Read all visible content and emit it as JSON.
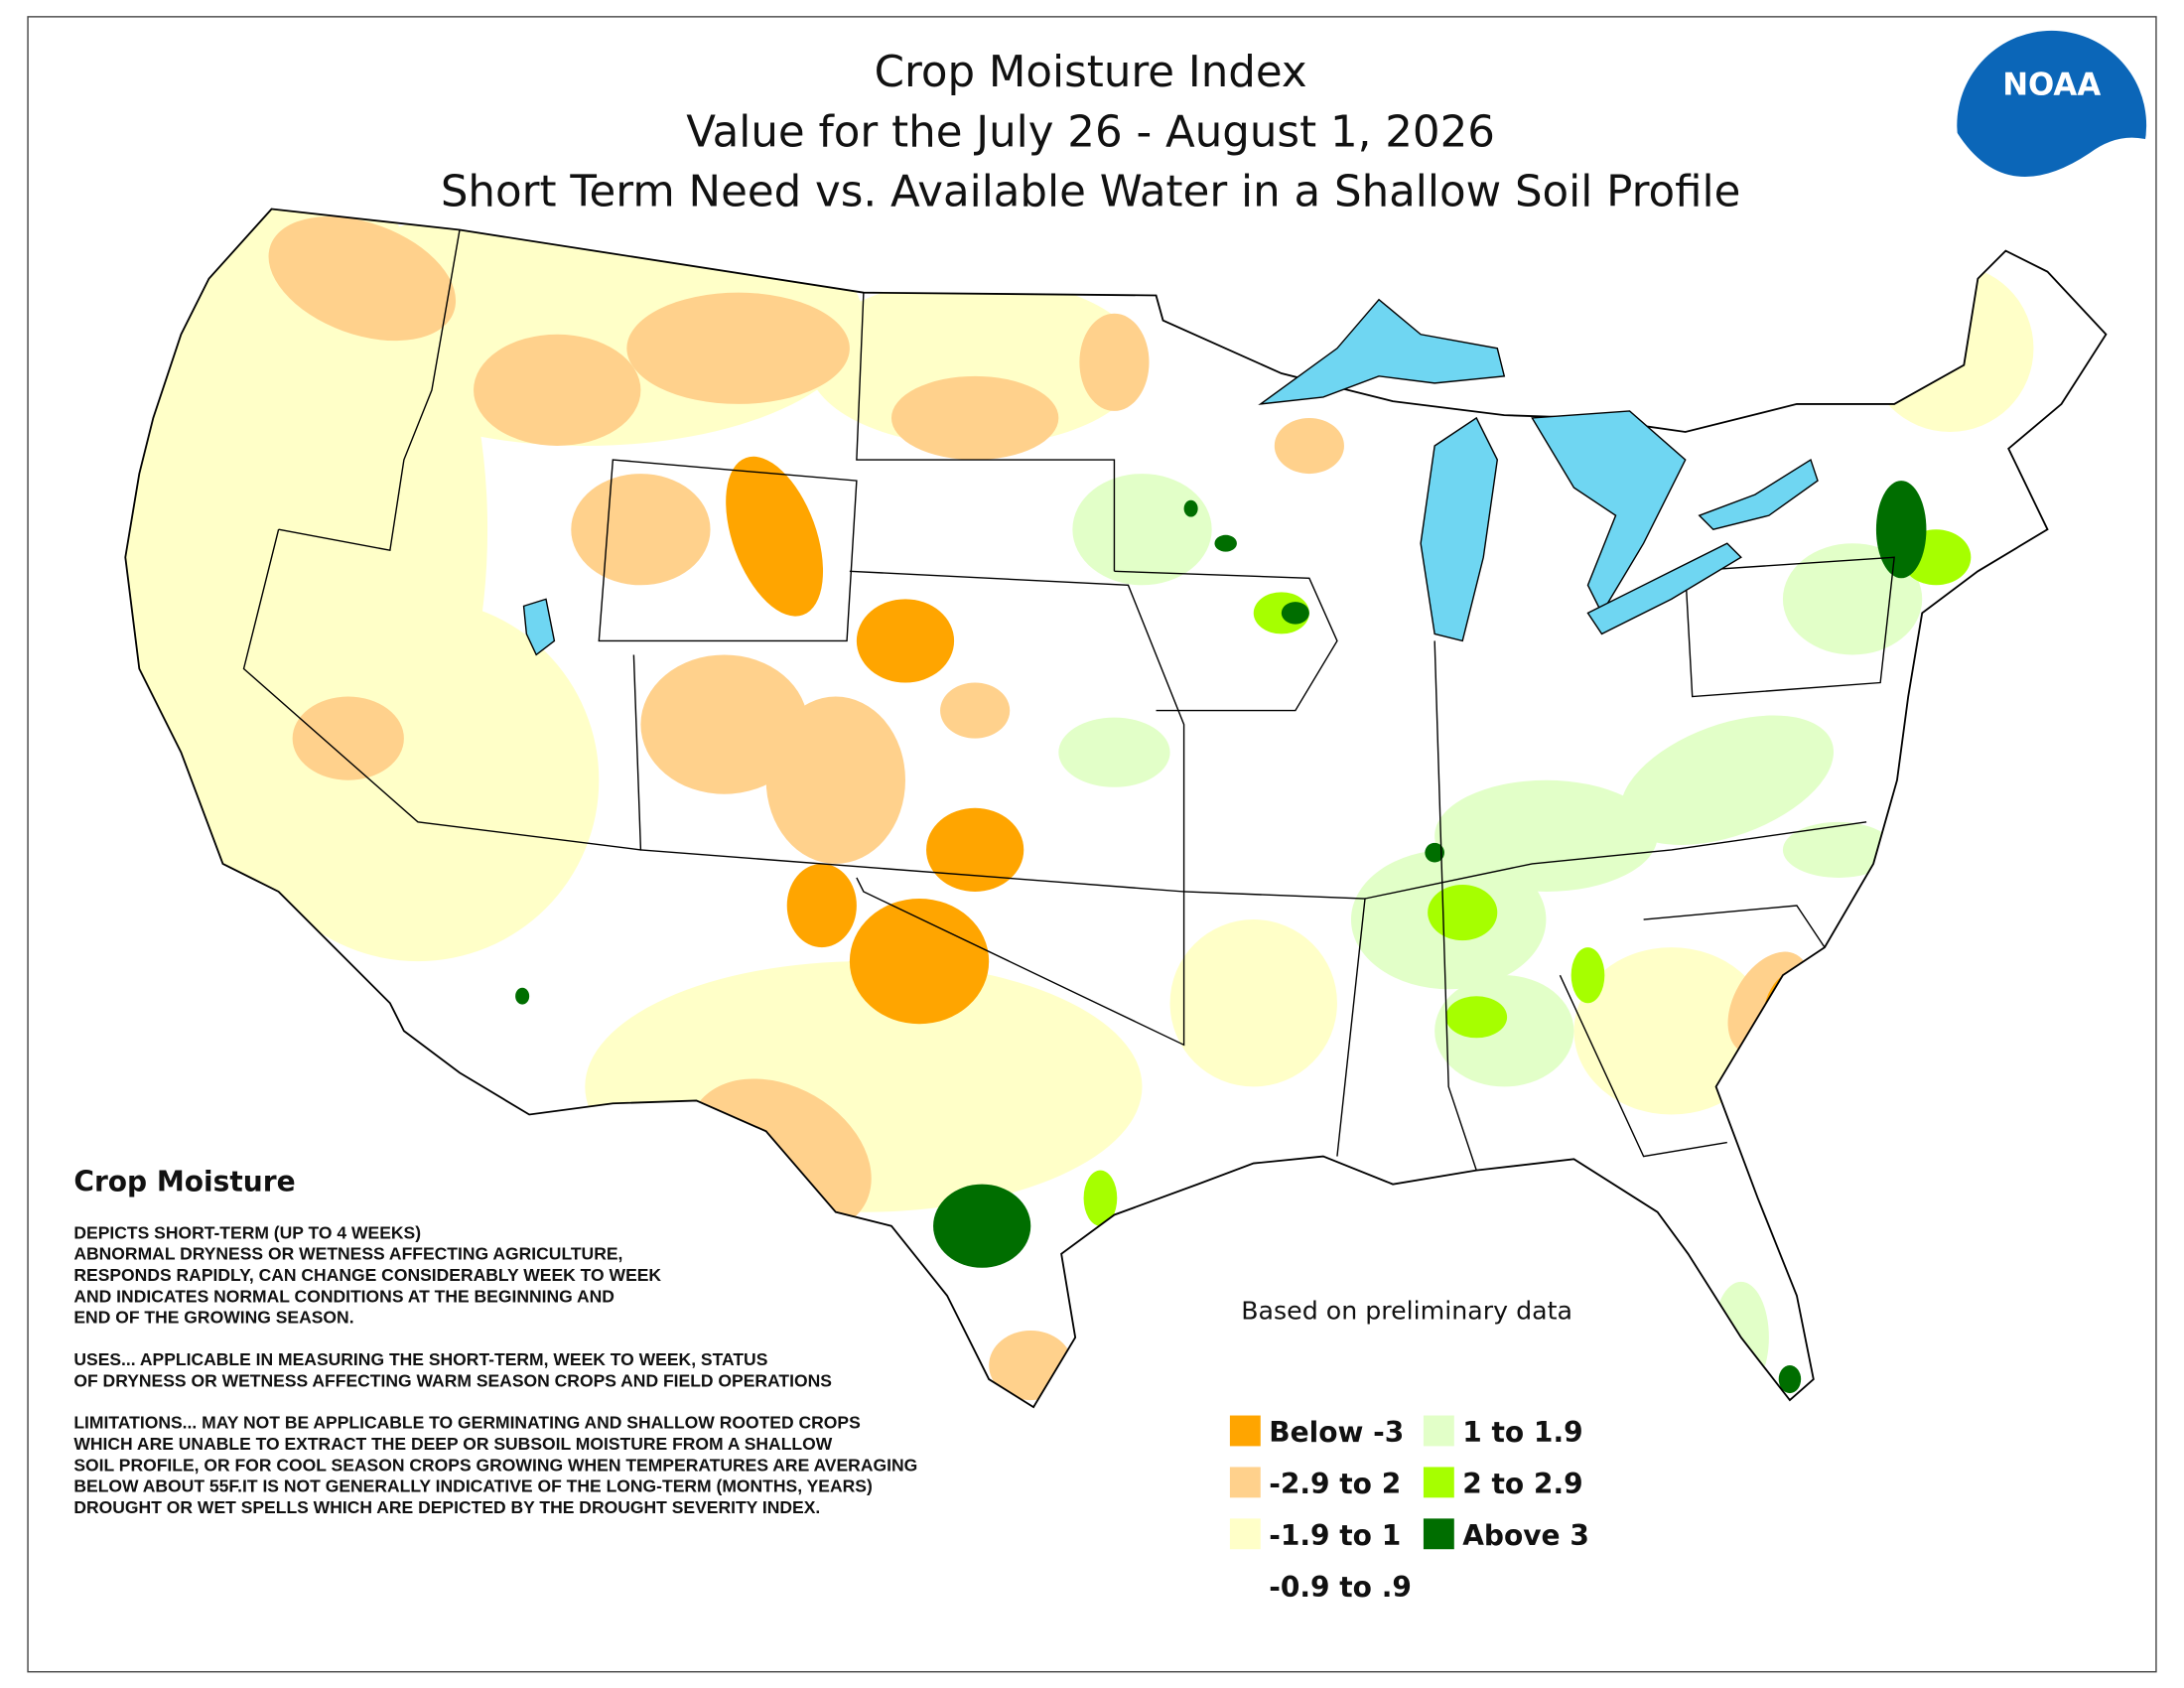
{
  "header": {
    "title_lines": [
      "Crop Moisture Index",
      "Value for the July 26 - August 1, 2026",
      "Short Term Need vs. Available Water in a Shallow Soil Profile"
    ]
  },
  "logo": {
    "text": "NOAA"
  },
  "notes": {
    "heading": "Crop Moisture",
    "paragraphs": [
      [
        "DEPICTS SHORT-TERM (UP TO 4 WEEKS)",
        "ABNORMAL DRYNESS OR WETNESS AFFECTING AGRICULTURE,",
        "RESPONDS RAPIDLY, CAN CHANGE CONSIDERABLY WEEK TO WEEK",
        "AND INDICATES NORMAL CONDITIONS AT THE BEGINNING AND",
        "END OF THE GROWING SEASON."
      ],
      [
        "USES... APPLICABLE IN MEASURING THE SHORT-TERM, WEEK TO WEEK, STATUS",
        "OF DRYNESS OR WETNESS AFFECTING WARM SEASON CROPS AND FIELD OPERATIONS"
      ],
      [
        "LIMITATIONS... MAY NOT BE APPLICABLE TO GERMINATING AND SHALLOW ROOTED CROPS",
        "WHICH ARE UNABLE TO EXTRACT THE DEEP OR SUBSOIL MOISTURE FROM A SHALLOW",
        "SOIL PROFILE, OR FOR COOL SEASON CROPS GROWING WHEN TEMPERATURES ARE AVERAGING",
        "BELOW ABOUT 55F.IT IS NOT GENERALLY INDICATIVE OF THE LONG-TERM (MONTHS, YEARS)",
        "DROUGHT OR WET SPELLS WHICH ARE DEPICTED BY THE DROUGHT SEVERITY INDEX."
      ]
    ]
  },
  "map_note": "Based on preliminary data",
  "legend": {
    "items": [
      {
        "label": "Below -3",
        "color": "#ffa500"
      },
      {
        "label": "-2.9 to 2",
        "color": "#ffd18c"
      },
      {
        "label": "-1.9 to 1",
        "color": "#ffffc8"
      },
      {
        "label": "-0.9 to .9",
        "color": "#ffffff"
      },
      {
        "label": "1 to 1.9",
        "color": "#e2ffc8"
      },
      {
        "label": "2 to 2.9",
        "color": "#a6ff00"
      },
      {
        "label": "Above 3",
        "color": "#006e00"
      }
    ]
  }
}
